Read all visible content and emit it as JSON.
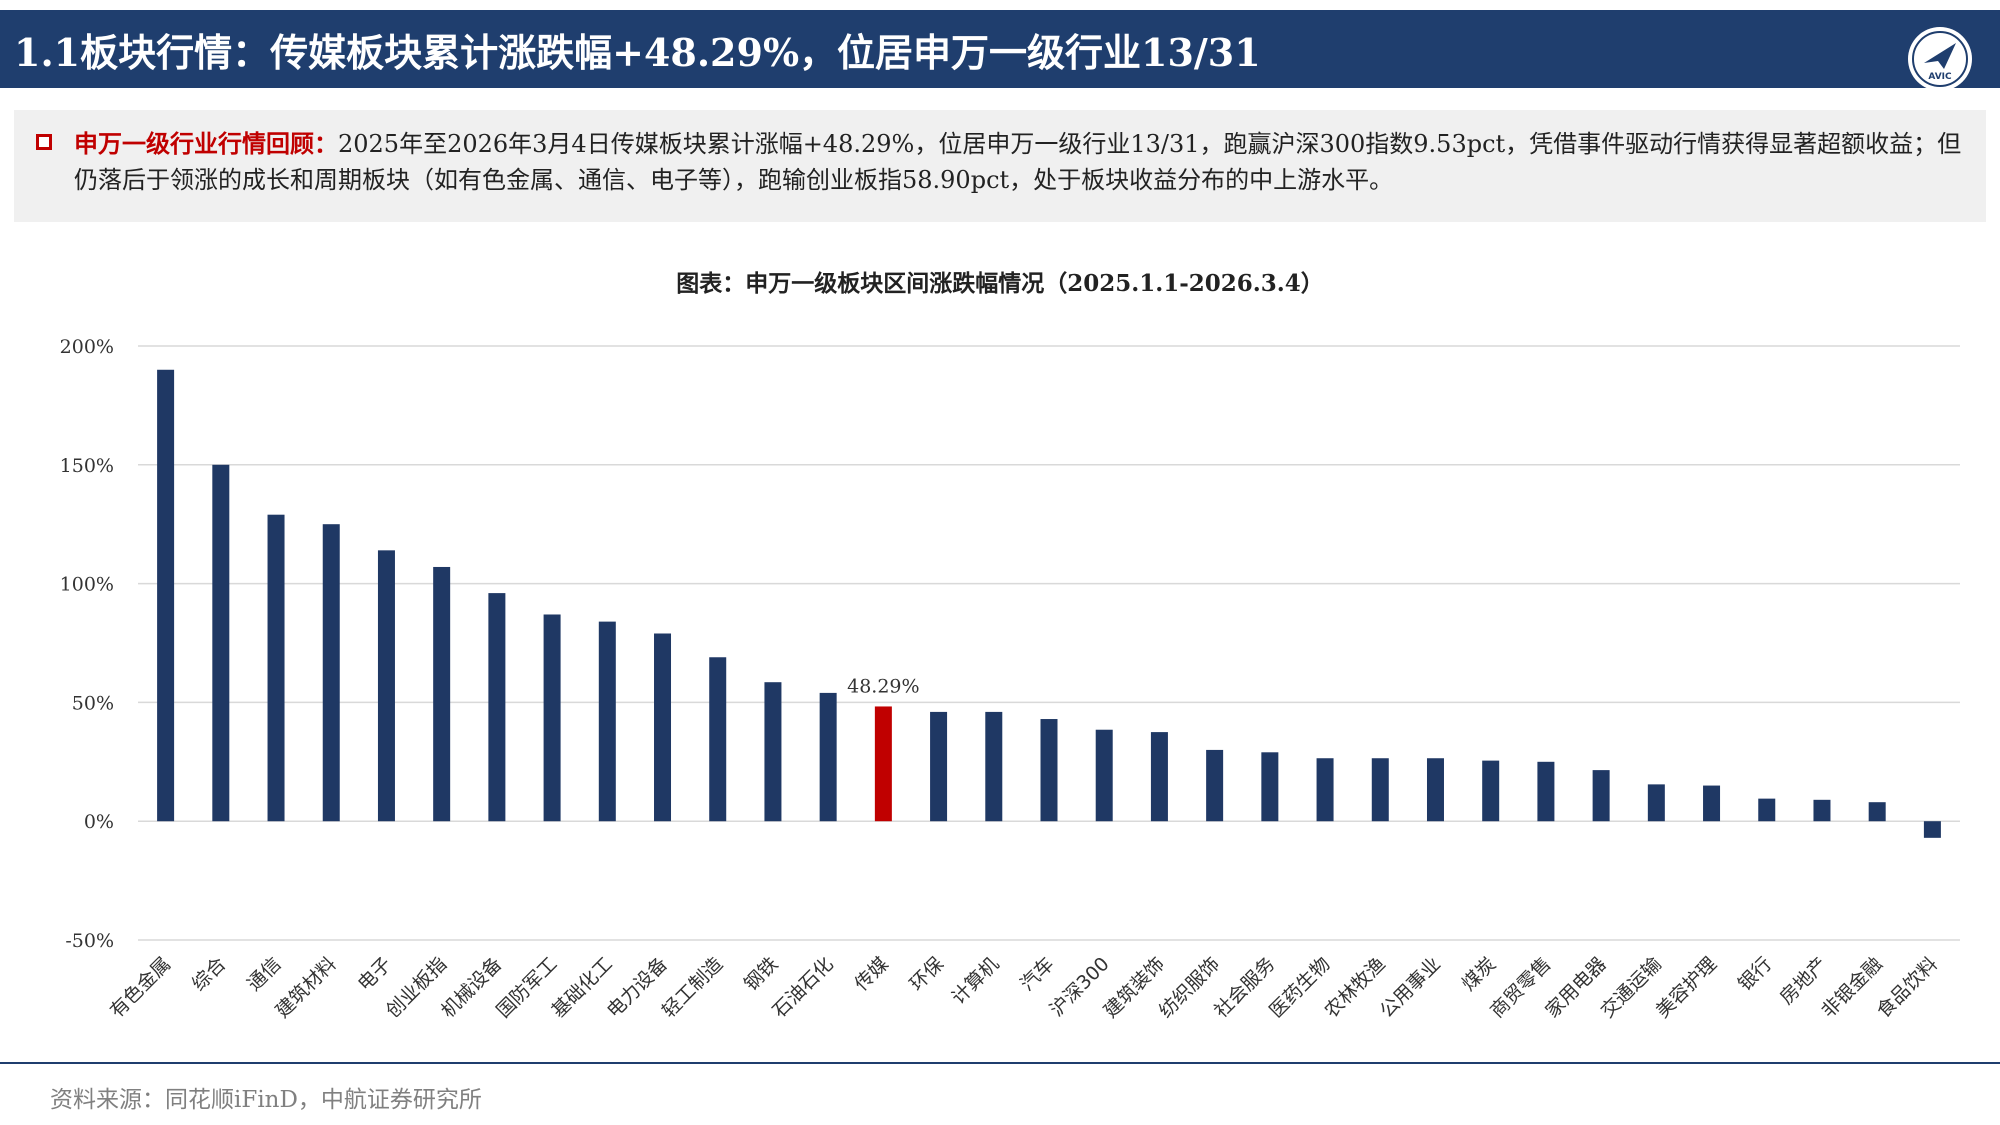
{
  "header": {
    "title": "1.1板块行情：传媒板块累计涨跌幅+48.29%，位居申万一级行业13/31",
    "logo_text": "AVIC"
  },
  "summary": {
    "label": "申万一级行业行情回顾：",
    "text": "2025年至2026年3月4日传媒板块累计涨幅+48.29%，位居申万一级行业13/31，跑赢沪深300指数9.53pct，凭借事件驱动行情获得显著超额收益；但仍落后于领涨的成长和周期板块（如有色金属、通信、电子等），跑输创业板指58.90pct，处于板块收益分布的中上游水平。"
  },
  "footer": {
    "source": "资料来源：同花顺iFinD，中航证券研究所"
  },
  "colors": {
    "bar": "#1f3864",
    "bar_alt": "#0f2a5c",
    "highlight": "#c00000",
    "grid": "#d9d9d9",
    "header": "#1f3e6e"
  },
  "chart_data": {
    "type": "bar",
    "title": "图表：申万一级板块区间涨跌幅情况（2025.1.1-2026.3.4）",
    "categories": [
      "有色金属",
      "综合",
      "通信",
      "建筑材料",
      "电子",
      "创业板指",
      "机械设备",
      "国防军工",
      "基础化工",
      "电力设备",
      "轻工制造",
      "钢铁",
      "石油石化",
      "传媒",
      "环保",
      "计算机",
      "汽车",
      "沪深300",
      "建筑装饰",
      "纺织服饰",
      "社会服务",
      "医药生物",
      "农林牧渔",
      "公用事业",
      "煤炭",
      "商贸零售",
      "家用电器",
      "交通运输",
      "美容护理",
      "银行",
      "房地产",
      "非银金融",
      "食品饮料"
    ],
    "values": [
      190,
      150,
      129,
      125,
      114,
      107,
      96,
      87,
      84,
      79,
      69,
      58.5,
      54,
      48.29,
      46,
      46,
      43,
      38.5,
      37.5,
      30,
      29,
      26.5,
      26.5,
      26.5,
      25.5,
      25,
      21.5,
      15.5,
      15,
      9.5,
      9,
      8,
      -7
    ],
    "highlight_category": "传媒",
    "highlight_label": "48.29%",
    "y_ticks": [
      "200%",
      "150%",
      "100%",
      "50%",
      "0%",
      "-50%"
    ],
    "y_tick_values": [
      200,
      150,
      100,
      50,
      0,
      -50
    ],
    "ylim": [
      -50,
      200
    ],
    "grid": true,
    "legend": "none"
  }
}
